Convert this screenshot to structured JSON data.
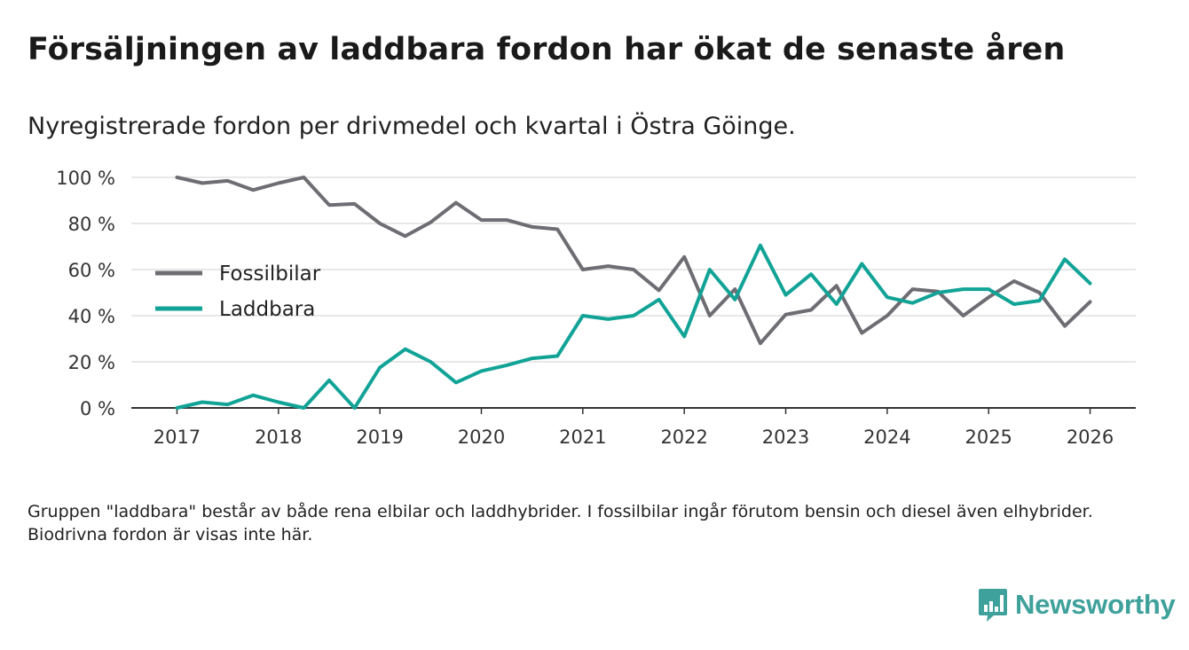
{
  "header": {
    "title": "Försäljningen av laddbara fordon har ökat de senaste åren",
    "subtitle": "Nyregistrerade fordon per drivmedel och kvartal i Östra Göinge."
  },
  "footer": {
    "note": "Gruppen \"laddbara\" består av både rena elbilar och laddhybrider. I fossilbilar ingår förutom bensin och diesel även elhybrider. Biodrivna fordon är visas inte här.",
    "brand": "Newsworthy",
    "brand_icon": "bar-chart-icon"
  },
  "colors": {
    "fossil": "#6e6d73",
    "laddbara": "#12a397",
    "grid": "#d9d9d9",
    "axis": "#333333",
    "brand": "#3fa19b"
  },
  "chart_data": {
    "type": "line",
    "title": "Försäljningen av laddbara fordon har ökat de senaste åren",
    "xlabel": "",
    "ylabel": "",
    "x_ticks": [
      "2017",
      "2018",
      "2019",
      "2020",
      "2021",
      "2022",
      "2023",
      "2024",
      "2025",
      "2026"
    ],
    "y_ticks": [
      "0 %",
      "20 %",
      "40 %",
      "60 %",
      "80 %",
      "100 %"
    ],
    "y_tick_values": [
      0,
      20,
      40,
      60,
      80,
      100
    ],
    "xlim": [
      2016.55,
      2026.45
    ],
    "ylim": [
      0,
      100
    ],
    "grid": true,
    "legend_position": "center-left",
    "x": [
      2017.0,
      2017.25,
      2017.5,
      2017.75,
      2018.0,
      2018.25,
      2018.5,
      2018.75,
      2019.0,
      2019.25,
      2019.5,
      2019.75,
      2020.0,
      2020.25,
      2020.5,
      2020.75,
      2021.0,
      2021.25,
      2021.5,
      2021.75,
      2022.0,
      2022.25,
      2022.5,
      2022.75,
      2023.0,
      2023.25,
      2023.5,
      2023.75,
      2024.0,
      2024.25,
      2024.5,
      2024.75,
      2025.0,
      2025.25,
      2025.5,
      2025.75,
      2026.0
    ],
    "series": [
      {
        "name": "Fossilbilar",
        "color": "#6e6d73",
        "values": [
          100,
          97.5,
          98.5,
          94.5,
          97.5,
          100,
          88,
          88.5,
          80,
          74.5,
          80.5,
          89,
          81.5,
          81.5,
          78.5,
          77.5,
          60,
          61.5,
          60,
          51,
          65.5,
          40,
          51.5,
          28,
          40.5,
          42.5,
          53,
          32.5,
          40,
          51.5,
          50.5,
          40,
          48,
          55,
          50,
          35.5,
          46
        ]
      },
      {
        "name": "Laddbara",
        "color": "#12a397",
        "values": [
          0,
          2.5,
          1.5,
          5.5,
          2.5,
          0,
          12,
          0,
          17.5,
          25.5,
          20,
          11,
          16,
          18.5,
          21.5,
          22.5,
          40,
          38.5,
          40,
          47,
          31,
          60,
          47,
          70.5,
          49,
          58,
          45,
          62.5,
          48,
          45.5,
          50,
          51.5,
          51.5,
          45,
          46.5,
          64.5,
          54
        ]
      }
    ]
  }
}
